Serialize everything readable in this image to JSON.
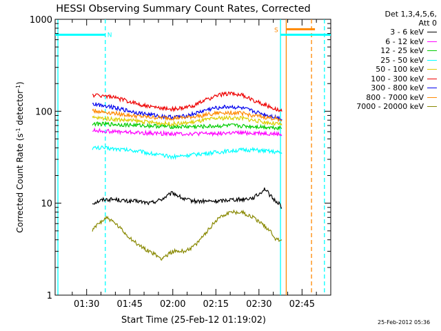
{
  "chart_data": {
    "type": "line",
    "title": "HESSI Observing Summary Count Rates, Corrected",
    "xlabel": "Start Time (25-Feb-12 01:19:02)",
    "ylabel": "Corrected Count Rate (s",
    "ylabel_sup1": "-1",
    "ylabel_mid": " detector",
    "ylabel_sup2": "-1",
    "ylabel_end": ")",
    "yscale": "log",
    "ylim": [
      1,
      1000
    ],
    "yticks": [
      {
        "value": 1,
        "label": "1"
      },
      {
        "value": 10,
        "label": "10"
      },
      {
        "value": 100,
        "label": "100"
      },
      {
        "value": 1000,
        "label": "1000"
      }
    ],
    "xlim_minutes": [
      79.03,
      175
    ],
    "xticks": [
      {
        "minute": 90,
        "label": "01:30"
      },
      {
        "minute": 105,
        "label": "01:45"
      },
      {
        "minute": 120,
        "label": "02:00"
      },
      {
        "minute": 135,
        "label": "02:15"
      },
      {
        "minute": 150,
        "label": "02:30"
      },
      {
        "minute": 165,
        "label": "02:45"
      }
    ],
    "detectors_label": "Det 1,3,4,5,6,",
    "attenuator_label": "Att 0",
    "series": [
      {
        "name": "3 - 6 keV",
        "color": "#000000",
        "x": [
          92,
          96,
          100,
          104,
          108,
          112,
          116,
          120,
          124,
          128,
          132,
          136,
          140,
          144,
          148,
          150,
          152,
          155,
          157,
          158
        ],
        "y": [
          10,
          11,
          11,
          10.5,
          10.5,
          10,
          11,
          13,
          11,
          10.5,
          10.5,
          10.5,
          11,
          11,
          11.5,
          12.5,
          14.5,
          11,
          10,
          9
        ]
      },
      {
        "name": "6 - 12 keV",
        "color": "#ff00ff",
        "x": [
          92,
          100,
          110,
          120,
          130,
          140,
          150,
          158
        ],
        "y": [
          62,
          60,
          58,
          57,
          57,
          58,
          58,
          56
        ]
      },
      {
        "name": "12 - 25 keV",
        "color": "#00cc00",
        "x": [
          92,
          100,
          110,
          120,
          130,
          140,
          150,
          158
        ],
        "y": [
          73,
          72,
          70,
          68,
          68,
          70,
          68,
          66
        ]
      },
      {
        "name": "25 - 50 keV",
        "color": "#00ffff",
        "x": [
          92,
          96,
          100,
          104,
          108,
          112,
          116,
          120,
          124,
          128,
          132,
          136,
          140,
          144,
          148,
          152,
          156,
          158
        ],
        "y": [
          40,
          40,
          39,
          38,
          37,
          35,
          33,
          32,
          33,
          34,
          35,
          36,
          37,
          38,
          38,
          37,
          36,
          35
        ]
      },
      {
        "name": "50 - 100 keV",
        "color": "#ddcc00",
        "x": [
          92,
          96,
          100,
          104,
          108,
          112,
          116,
          120,
          124,
          128,
          132,
          136,
          140,
          144,
          148,
          152,
          156,
          158
        ],
        "y": [
          85,
          84,
          82,
          80,
          78,
          76,
          74,
          73,
          74,
          77,
          81,
          84,
          85,
          84,
          80,
          76,
          73,
          71
        ]
      },
      {
        "name": "100 - 300 keV",
        "color": "#ee0000",
        "x": [
          92,
          96,
          100,
          104,
          108,
          112,
          116,
          120,
          124,
          128,
          132,
          136,
          140,
          144,
          148,
          152,
          156,
          158
        ],
        "y": [
          150,
          148,
          140,
          130,
          120,
          112,
          108,
          106,
          108,
          118,
          135,
          150,
          158,
          150,
          132,
          118,
          106,
          100
        ]
      },
      {
        "name": "300 - 800 keV",
        "color": "#0000ee",
        "x": [
          92,
          96,
          100,
          104,
          108,
          112,
          116,
          120,
          124,
          128,
          132,
          136,
          140,
          144,
          148,
          152,
          156,
          158
        ],
        "y": [
          120,
          116,
          110,
          102,
          96,
          92,
          88,
          86,
          88,
          95,
          104,
          110,
          112,
          108,
          100,
          92,
          86,
          82
        ]
      },
      {
        "name": "800 - 7000 keV",
        "color": "#ff8800",
        "x": [
          92,
          96,
          100,
          104,
          108,
          112,
          116,
          120,
          124,
          128,
          132,
          136,
          140,
          144,
          148,
          152,
          156,
          158
        ],
        "y": [
          102,
          98,
          95,
          91,
          88,
          86,
          85,
          84,
          85,
          88,
          92,
          96,
          97,
          95,
          90,
          86,
          83,
          80
        ]
      },
      {
        "name": "7000 - 20000 keV",
        "color": "#888800",
        "x": [
          92,
          94,
          97,
          100,
          104,
          108,
          112,
          116,
          120,
          124,
          128,
          132,
          136,
          140,
          144,
          148,
          151,
          154,
          156,
          158
        ],
        "y": [
          5,
          6,
          7,
          6,
          4.5,
          3.5,
          3,
          2.5,
          3,
          3,
          3.5,
          5,
          7,
          8,
          8,
          7,
          6,
          5,
          4,
          4
        ]
      }
    ],
    "vertical_markers": [
      {
        "minute": 80,
        "color": "#00ffff",
        "style": "solid"
      },
      {
        "minute": 96.5,
        "color": "#00ffff",
        "style": "dashed"
      },
      {
        "minute": 157.5,
        "color": "#00ffff",
        "style": "solid"
      },
      {
        "minute": 159.5,
        "color": "#ff8800",
        "style": "solid"
      },
      {
        "minute": 168.3,
        "color": "#ff8800",
        "style": "dashed"
      },
      {
        "minute": 172.8,
        "color": "#00ffff",
        "style": "dashed"
      }
    ],
    "bars": [
      {
        "x0": 79.03,
        "x1": 96.5,
        "y": 680,
        "color": "#00ffff"
      },
      {
        "x0": 157.5,
        "x1": 175,
        "y": 680,
        "color": "#00ffff"
      },
      {
        "x0": 159.5,
        "x1": 169.5,
        "y": 780,
        "color": "#ff8800"
      }
    ],
    "annotations": [
      {
        "text": "N",
        "minute": 98,
        "value": 690,
        "color": "#00ffff"
      },
      {
        "text": "S",
        "minute": 156,
        "value": 780,
        "color": "#ff8800"
      }
    ]
  },
  "timestamp": "25-Feb-2012 05:36"
}
